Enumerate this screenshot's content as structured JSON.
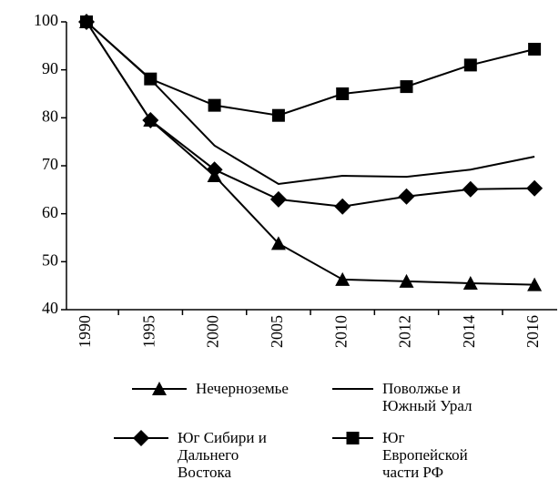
{
  "chart_data": {
    "type": "line",
    "categories": [
      "1990",
      "1995",
      "2000",
      "2005",
      "2010",
      "2012",
      "2014",
      "2016"
    ],
    "ylim": [
      40,
      100
    ],
    "yticks": [
      40,
      50,
      60,
      70,
      80,
      90,
      100
    ],
    "series": [
      {
        "name": "Нечерноземье",
        "color": "#000000",
        "marker": "triangle",
        "values": [
          100,
          79.5,
          67.9,
          53.8,
          46.3,
          45.9,
          45.5,
          45.2
        ]
      },
      {
        "name": "Поволжье и Южный Урал",
        "color": "#000000",
        "marker": "none",
        "values": [
          100,
          88,
          74.2,
          66.2,
          67.9,
          67.7,
          69.2,
          71.9
        ]
      },
      {
        "name": "Юг Сибири и Дальнего Востока",
        "color": "#000000",
        "marker": "diamond",
        "values": [
          100,
          79.5,
          69.2,
          63,
          61.5,
          63.6,
          65.1,
          65.3
        ]
      },
      {
        "name": "Юг Европейской части РФ",
        "color": "#000000",
        "marker": "square",
        "values": [
          100,
          88.1,
          82.6,
          80.5,
          85,
          86.5,
          91,
          94.3
        ]
      }
    ]
  }
}
